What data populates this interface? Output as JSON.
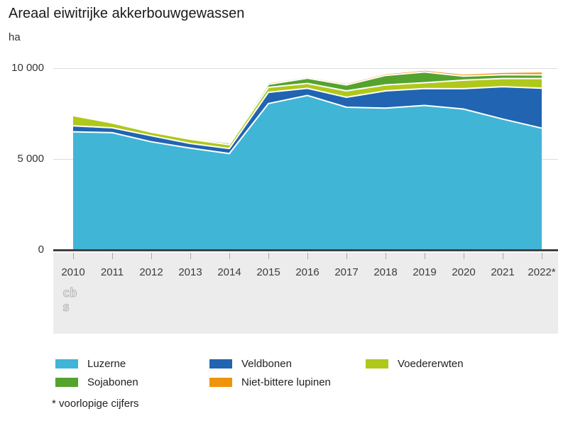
{
  "title": "Areaal eiwitrijke akkerbouwgewassen",
  "unit_label": "ha",
  "footnote": "* voorlopige cijfers",
  "logo_text": {
    "line1": "cb",
    "line2": "s"
  },
  "colors": {
    "background": "#ffffff",
    "gridline": "#dcdcdc",
    "zero_axis": "#404040",
    "axis_band": "#ececec",
    "separator": "#ffffff",
    "text": "#333333"
  },
  "chart_data": {
    "type": "area",
    "stacked": true,
    "title": "Areaal eiwitrijke akkerbouwgewassen",
    "ylabel": "ha",
    "ylim": [
      0,
      10000
    ],
    "yticks": [
      0,
      5000,
      10000
    ],
    "ytick_labels": [
      "0",
      "5 000",
      "10 000"
    ],
    "grid": "horizontal",
    "legend_position": "bottom",
    "categories": [
      "2010",
      "2011",
      "2012",
      "2013",
      "2014",
      "2015",
      "2016",
      "2017",
      "2018",
      "2019",
      "2020",
      "2021",
      "2022*"
    ],
    "series": [
      {
        "name": "Luzerne",
        "color": "#41b5d6",
        "values": [
          6500,
          6450,
          5950,
          5600,
          5300,
          8050,
          8500,
          7850,
          7800,
          7950,
          7750,
          7200,
          6700
        ]
      },
      {
        "name": "Veldbonen",
        "color": "#2064b2",
        "values": [
          330,
          270,
          330,
          260,
          280,
          620,
          390,
          550,
          950,
          930,
          1120,
          1780,
          2200
        ]
      },
      {
        "name": "Voedererwten",
        "color": "#b0c81a",
        "values": [
          560,
          270,
          200,
          230,
          210,
          270,
          270,
          350,
          330,
          320,
          470,
          450,
          530
        ]
      },
      {
        "name": "Sojabonen",
        "color": "#55a32f",
        "values": [
          0,
          30,
          40,
          60,
          100,
          170,
          290,
          330,
          520,
          590,
          220,
          210,
          200
        ]
      },
      {
        "name": "Niet-bittere lupinen",
        "color": "#f0930c",
        "values": [
          0,
          0,
          10,
          30,
          40,
          50,
          40,
          50,
          60,
          70,
          80,
          95,
          130
        ]
      }
    ]
  }
}
